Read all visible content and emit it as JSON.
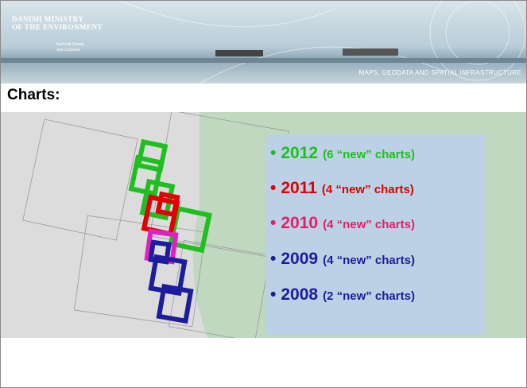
{
  "header": {
    "ministry": [
      "DANISH MINISTRY",
      "OF THE ENVIRONMENT"
    ],
    "agency": [
      "National Survey",
      "and Cadastre"
    ],
    "tagline": "MAPS, GEODATA AND SPATIAL INFRASTRUCTURE"
  },
  "title": "Charts:",
  "legend": [
    {
      "bullet": "•",
      "year": "2012",
      "note": "(6 “new” charts)",
      "color": "#1fbf1f"
    },
    {
      "bullet": "•",
      "year": "2011",
      "note": "(4 “new” charts)",
      "color": "#e00000"
    },
    {
      "bullet": "•",
      "year": "2010",
      "note": "(4 “new” charts)",
      "color": "#e0206a"
    },
    {
      "bullet": "•",
      "year": "2009",
      "note": "(4 “new” charts)",
      "color": "#1c1c9c"
    },
    {
      "bullet": "•",
      "year": "2008",
      "note": "(2 “new” charts)",
      "color": "#1c1c9c"
    }
  ]
}
